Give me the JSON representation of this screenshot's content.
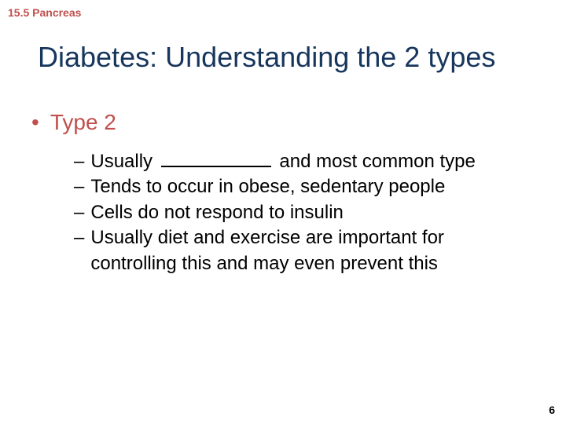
{
  "colors": {
    "title": "#17365d",
    "accent": "#c0504d",
    "body": "#000000",
    "background": "#ffffff"
  },
  "typography": {
    "section_label_fontsize": 14,
    "title_fontsize": 36,
    "bullet1_fontsize": 28,
    "bullet2_fontsize": 24,
    "font_family": "Arial"
  },
  "section_label": "15.5 Pancreas",
  "title": "Diabetes: Understanding the 2 types",
  "bullets": {
    "level1": {
      "marker": "•",
      "text": "Type 2"
    },
    "level2": {
      "marker": "–",
      "items": [
        {
          "pre": "Usually ",
          "has_blank": true,
          "post": " and most common type"
        },
        {
          "pre": "Tends to occur in obese, sedentary people",
          "has_blank": false,
          "post": ""
        },
        {
          "pre": "Cells do not respond to insulin",
          "has_blank": false,
          "post": ""
        },
        {
          "pre": "Usually diet and exercise are important for controlling this and may even prevent this",
          "has_blank": false,
          "post": ""
        }
      ]
    }
  },
  "page_number": "6"
}
